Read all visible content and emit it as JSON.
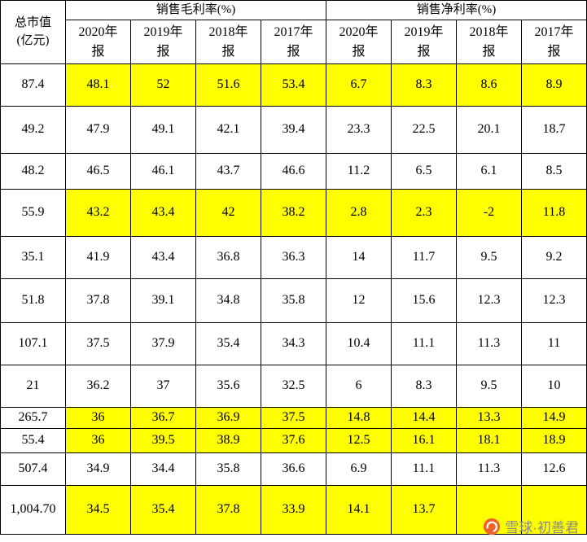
{
  "chart_data": {
    "type": "table",
    "corner_header_line1": "总市值",
    "corner_header_line2": "(亿元)",
    "column_groups": [
      {
        "label": "销售毛利率(%)",
        "span": 4
      },
      {
        "label": "销售净利率(%)",
        "span": 4
      }
    ],
    "year_headers": [
      "2020年报",
      "2019年报",
      "2018年报",
      "2017年报",
      "2020年报",
      "2019年报",
      "2018年报",
      "2017年报"
    ],
    "highlight_color": "#ffff00",
    "rows": [
      {
        "market_cap": "87.4",
        "values": [
          "48.1",
          "52",
          "51.6",
          "53.4",
          "6.7",
          "8.3",
          "8.6",
          "8.9"
        ],
        "highlight": true
      },
      {
        "market_cap": "49.2",
        "values": [
          "47.9",
          "49.1",
          "42.1",
          "39.4",
          "23.3",
          "22.5",
          "20.1",
          "18.7"
        ],
        "highlight": false
      },
      {
        "market_cap": "48.2",
        "values": [
          "46.5",
          "46.1",
          "43.7",
          "46.6",
          "11.2",
          "6.5",
          "6.1",
          "8.5"
        ],
        "highlight": false
      },
      {
        "market_cap": "55.9",
        "values": [
          "43.2",
          "43.4",
          "42",
          "38.2",
          "2.8",
          "2.3",
          "-2",
          "11.8"
        ],
        "highlight": true
      },
      {
        "market_cap": "35.1",
        "values": [
          "41.9",
          "43.4",
          "36.8",
          "36.3",
          "14",
          "11.7",
          "9.5",
          "9.2"
        ],
        "highlight": false
      },
      {
        "market_cap": "51.8",
        "values": [
          "37.8",
          "39.1",
          "34.8",
          "35.8",
          "12",
          "15.6",
          "12.3",
          "12.3"
        ],
        "highlight": false
      },
      {
        "market_cap": "107.1",
        "values": [
          "37.5",
          "37.9",
          "35.4",
          "34.3",
          "10.4",
          "11.1",
          "11.3",
          "11"
        ],
        "highlight": false
      },
      {
        "market_cap": "21",
        "values": [
          "36.2",
          "37",
          "35.6",
          "32.5",
          "6",
          "8.3",
          "9.5",
          "10"
        ],
        "highlight": false
      },
      {
        "market_cap": "265.7",
        "values": [
          "36",
          "36.7",
          "36.9",
          "37.5",
          "14.8",
          "14.4",
          "13.3",
          "14.9"
        ],
        "highlight": true
      },
      {
        "market_cap": "55.4",
        "values": [
          "36",
          "39.5",
          "38.9",
          "37.6",
          "12.5",
          "16.1",
          "18.1",
          "18.9"
        ],
        "highlight": true
      },
      {
        "market_cap": "507.4",
        "values": [
          "34.9",
          "34.4",
          "35.8",
          "36.6",
          "6.9",
          "11.1",
          "11.3",
          "12.6"
        ],
        "highlight": false
      },
      {
        "market_cap": "1,004.70",
        "values": [
          "34.5",
          "35.4",
          "37.8",
          "33.9",
          "14.1",
          "13.7",
          "",
          ""
        ],
        "highlight": true
      }
    ]
  },
  "watermark": {
    "text": "雪球·初善君",
    "logo_color": "#f0642c",
    "text_color": "#8a8a8a"
  }
}
